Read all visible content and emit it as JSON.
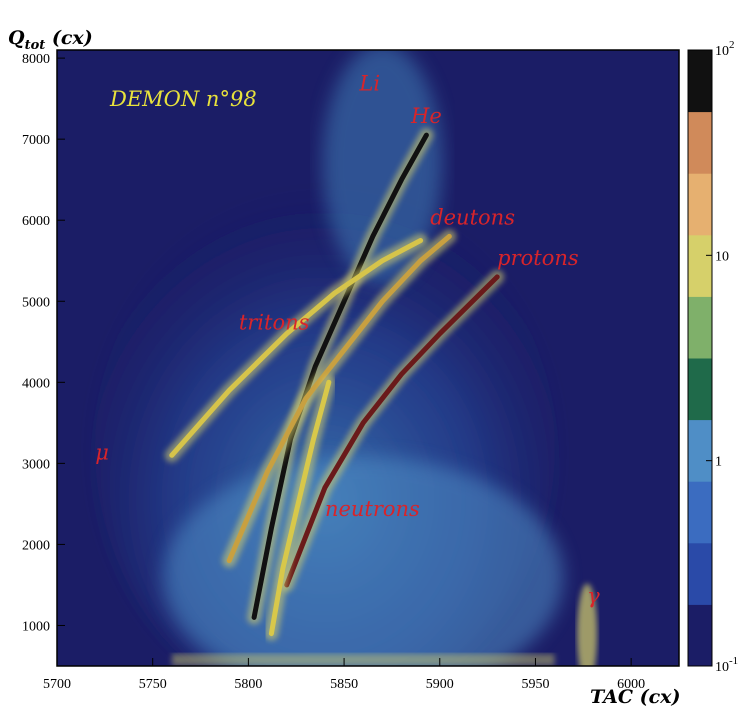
{
  "chart_data": {
    "type": "heatmap",
    "title": "DEMON  n°98",
    "xlabel": "TAC (cx)",
    "ylabel": "Q_tot (cx)",
    "ylabel_main": "Q",
    "ylabel_sub": "tot",
    "ylabel_unit": " (cx)",
    "xlim": [
      5700,
      6025
    ],
    "ylim": [
      500,
      8100
    ],
    "x_ticks": [
      "5700",
      "5750",
      "5800",
      "5850",
      "5900",
      "5950",
      "6000"
    ],
    "y_ticks": [
      "1000",
      "2000",
      "3000",
      "4000",
      "5000",
      "6000",
      "7000",
      "8000"
    ],
    "colorbar": {
      "scale": "log",
      "range": [
        0.1,
        100
      ],
      "ticks": [
        {
          "label": "10",
          "sup": "2",
          "value": 100
        },
        {
          "label": "10",
          "sup": "",
          "value": 10
        },
        {
          "label": "1",
          "sup": "",
          "value": 1
        },
        {
          "label": "10",
          "sup": "-1",
          "value": 0.1
        }
      ],
      "colors": [
        "#1b1d66",
        "#2a4aa8",
        "#3b6cc0",
        "#4f8ec6",
        "#1f6a4a",
        "#7fb06a",
        "#d6d06a",
        "#e6b070",
        "#d08a5a",
        "#111111"
      ]
    },
    "background_color": "#1b1d66",
    "bands": [
      {
        "name": "Li",
        "points": [
          [
            5803,
            1100
          ],
          [
            5812,
            2200
          ],
          [
            5822,
            3300
          ],
          [
            5835,
            4200
          ],
          [
            5850,
            5000
          ],
          [
            5865,
            5800
          ],
          [
            5880,
            6500
          ],
          [
            5893,
            7050
          ]
        ],
        "color": "#111111"
      },
      {
        "name": "tritons",
        "points": [
          [
            5760,
            3100
          ],
          [
            5790,
            3900
          ],
          [
            5820,
            4600
          ],
          [
            5845,
            5100
          ],
          [
            5870,
            5500
          ],
          [
            5890,
            5750
          ]
        ],
        "color": "#d6c44a"
      },
      {
        "name": "deutons",
        "points": [
          [
            5790,
            1800
          ],
          [
            5810,
            2900
          ],
          [
            5830,
            3800
          ],
          [
            5850,
            4400
          ],
          [
            5870,
            5000
          ],
          [
            5890,
            5500
          ],
          [
            5905,
            5800
          ]
        ],
        "color": "#c8a040"
      },
      {
        "name": "protons",
        "points": [
          [
            5820,
            1500
          ],
          [
            5840,
            2700
          ],
          [
            5860,
            3500
          ],
          [
            5880,
            4100
          ],
          [
            5900,
            4600
          ],
          [
            5930,
            5300
          ]
        ],
        "color": "#6a1a1a"
      },
      {
        "name": "neutrons",
        "points": [
          [
            5812,
            900
          ],
          [
            5818,
            1700
          ],
          [
            5826,
            2500
          ],
          [
            5834,
            3300
          ],
          [
            5842,
            4000
          ]
        ],
        "color": "#d8c84a"
      }
    ],
    "annotations": [
      {
        "text": "Li",
        "x": 5858,
        "y": 7600
      },
      {
        "text": "He",
        "x": 5885,
        "y": 7200
      },
      {
        "text": "deutons",
        "x": 5895,
        "y": 5950
      },
      {
        "text": "protons",
        "x": 5930,
        "y": 5450
      },
      {
        "text": "tritons",
        "x": 5795,
        "y": 4650
      },
      {
        "text": "μ",
        "x": 5720,
        "y": 3050
      },
      {
        "text": "neutrons",
        "x": 5840,
        "y": 2350
      },
      {
        "text": "γ",
        "x": 5977,
        "y": 1280
      }
    ]
  }
}
